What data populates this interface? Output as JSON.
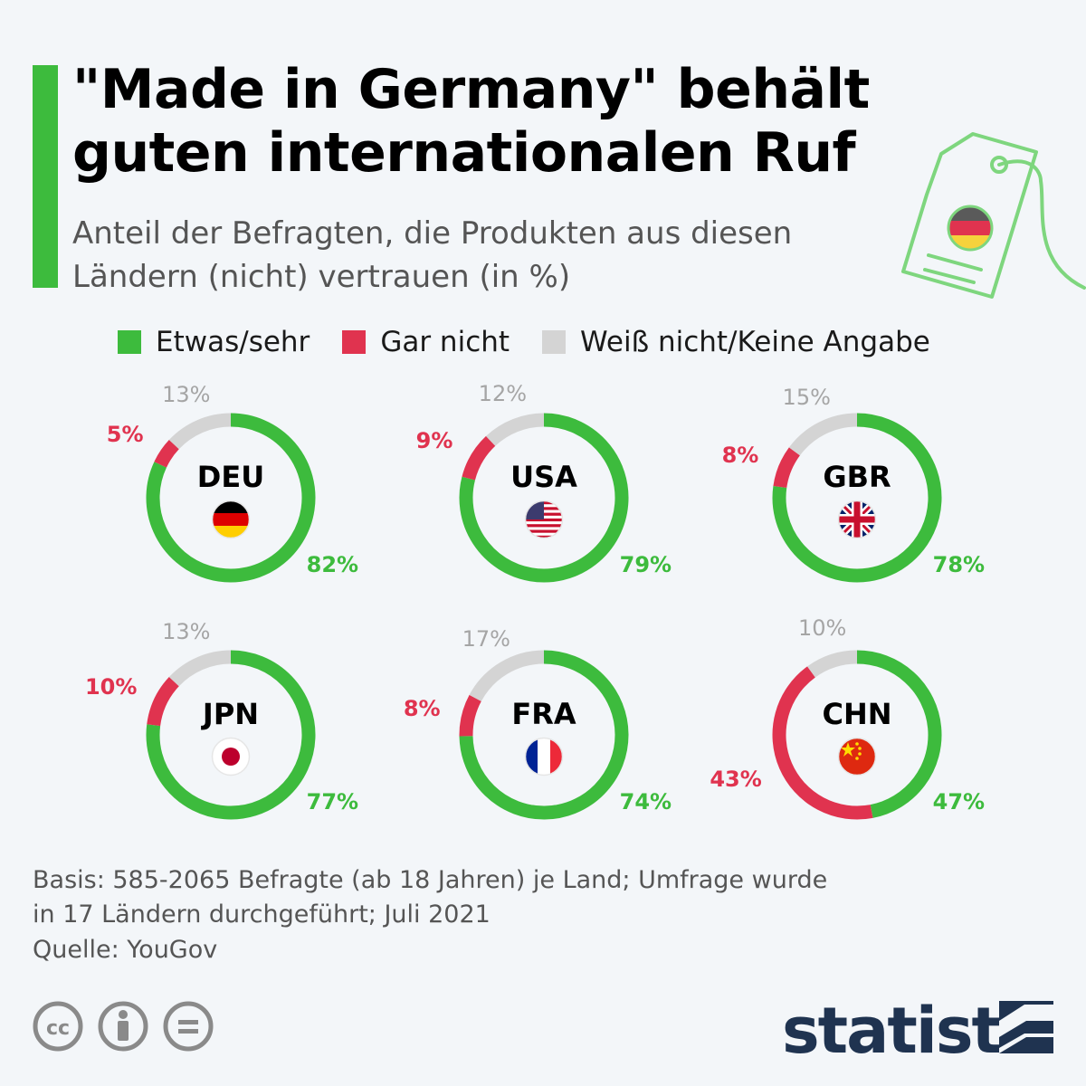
{
  "header": {
    "title": "\"Made in Germany\" behält guten internationalen Ruf",
    "subtitle": "Anteil der Befragten, die Produkten aus diesen Ländern (nicht) vertrauen (in %)"
  },
  "colors": {
    "accent": "#3dbb3d",
    "trust": "#3dbb3d",
    "no_trust": "#e0334f",
    "unknown": "#d4d4d4",
    "brand": "#1f3350"
  },
  "legend": [
    {
      "label": "Etwas/sehr",
      "color": "#3dbb3d"
    },
    {
      "label": "Gar nicht",
      "color": "#e0334f"
    },
    {
      "label": "Weiß nicht/Keine Angabe",
      "color": "#d4d4d4"
    }
  ],
  "chart_data": {
    "type": "pie",
    "variant": "donut",
    "title": "\"Made in Germany\" behält guten internationalen Ruf",
    "series_names": [
      "Etwas/sehr",
      "Gar nicht",
      "Weiß nicht/Keine Angabe"
    ],
    "unit": "%",
    "charts": [
      {
        "country": "DEU",
        "flag": "de",
        "values": [
          82,
          5,
          13
        ],
        "labels": [
          "82%",
          "5%",
          "13%"
        ]
      },
      {
        "country": "USA",
        "flag": "us",
        "values": [
          79,
          9,
          12
        ],
        "labels": [
          "79%",
          "9%",
          "12%"
        ]
      },
      {
        "country": "GBR",
        "flag": "gb",
        "values": [
          78,
          8,
          15
        ],
        "labels": [
          "78%",
          "8%",
          "15%"
        ]
      },
      {
        "country": "JPN",
        "flag": "jp",
        "values": [
          77,
          10,
          13
        ],
        "labels": [
          "77%",
          "10%",
          "13%"
        ]
      },
      {
        "country": "FRA",
        "flag": "fr",
        "values": [
          74,
          8,
          17
        ],
        "labels": [
          "74%",
          "8%",
          "17%"
        ]
      },
      {
        "country": "CHN",
        "flag": "cn",
        "values": [
          47,
          43,
          10
        ],
        "labels": [
          "47%",
          "43%",
          "10%"
        ]
      }
    ]
  },
  "footer": {
    "note": "Basis: 585-2065 Befragte (ab 18 Jahren) je Land; Umfrage wurde in 17 Ländern durchgeführt; Juli 2021",
    "source": "Quelle: YouGov",
    "brand": "statista",
    "license_icons": [
      "cc-icon",
      "attribution-icon",
      "no-derivatives-icon"
    ]
  }
}
